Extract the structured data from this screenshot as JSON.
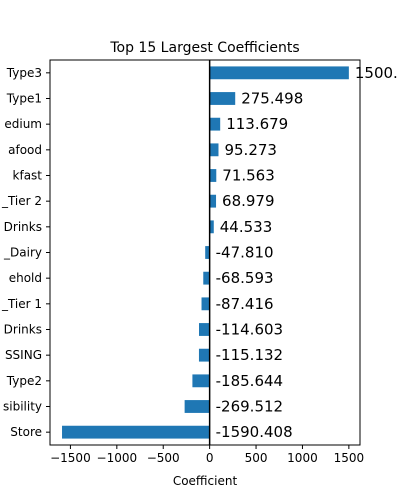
{
  "chart_data": {
    "type": "bar",
    "orientation": "horizontal",
    "title": "Top 15 Largest Coefficients",
    "xlabel": "Coefficient",
    "ylabel": "",
    "xlim": [
      -1720,
      1620
    ],
    "xticks": [
      -1500,
      -1000,
      -500,
      0,
      500,
      1000,
      1500
    ],
    "xtick_labels": [
      "−1500",
      "−1000",
      "−500",
      "0",
      "500",
      "1000",
      "1500"
    ],
    "categories": [
      "Type3",
      "Type1",
      "edium",
      "afood",
      "kfast",
      "_Tier 2",
      "Drinks",
      "_Dairy",
      "ehold",
      "_Tier 1",
      "Drinks",
      "SSING",
      "Type2",
      "sibility",
      "Store"
    ],
    "values": [
      1500.0,
      275.498,
      113.679,
      95.273,
      71.563,
      68.979,
      44.533,
      -47.81,
      -68.593,
      -87.416,
      -114.603,
      -115.132,
      -185.644,
      -269.512,
      -1590.408
    ],
    "data_labels": [
      "1500.",
      "275.498",
      "113.679",
      "95.273",
      "71.563",
      "68.979",
      "44.533",
      "-47.810",
      "-68.593",
      "-87.416",
      "-114.603",
      "-115.132",
      "-185.644",
      "-269.512",
      "-1590.408"
    ],
    "bar_color": "#1f77b4",
    "zero_line_color": "#000000",
    "grid": false,
    "legend": "none"
  }
}
